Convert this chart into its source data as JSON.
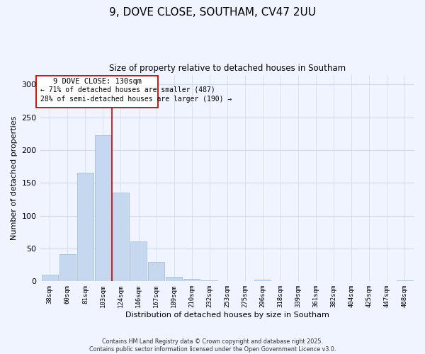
{
  "title": "9, DOVE CLOSE, SOUTHAM, CV47 2UU",
  "subtitle": "Size of property relative to detached houses in Southam",
  "xlabel": "Distribution of detached houses by size in Southam",
  "ylabel": "Number of detached properties",
  "bar_color": "#c5d8f0",
  "bar_edge_color": "#a0b8d8",
  "categories": [
    "38sqm",
    "60sqm",
    "81sqm",
    "103sqm",
    "124sqm",
    "146sqm",
    "167sqm",
    "189sqm",
    "210sqm",
    "232sqm",
    "253sqm",
    "275sqm",
    "296sqm",
    "318sqm",
    "339sqm",
    "361sqm",
    "382sqm",
    "404sqm",
    "425sqm",
    "447sqm",
    "468sqm"
  ],
  "values": [
    10,
    41,
    165,
    223,
    135,
    61,
    30,
    7,
    4,
    1,
    0,
    0,
    2,
    0,
    0,
    0,
    0,
    0,
    0,
    0,
    1
  ],
  "ylim": [
    0,
    315
  ],
  "yticks": [
    0,
    50,
    100,
    150,
    200,
    250,
    300
  ],
  "vline_x": 3.5,
  "vline_color": "#cc0000",
  "annotation_title": "9 DOVE CLOSE: 130sqm",
  "annotation_line1": "← 71% of detached houses are smaller (487)",
  "annotation_line2": "28% of semi-detached houses are larger (190) →",
  "footer1": "Contains HM Land Registry data © Crown copyright and database right 2025.",
  "footer2": "Contains public sector information licensed under the Open Government Licence v3.0.",
  "bg_color": "#f0f4ff",
  "grid_color": "#d0d8ea"
}
